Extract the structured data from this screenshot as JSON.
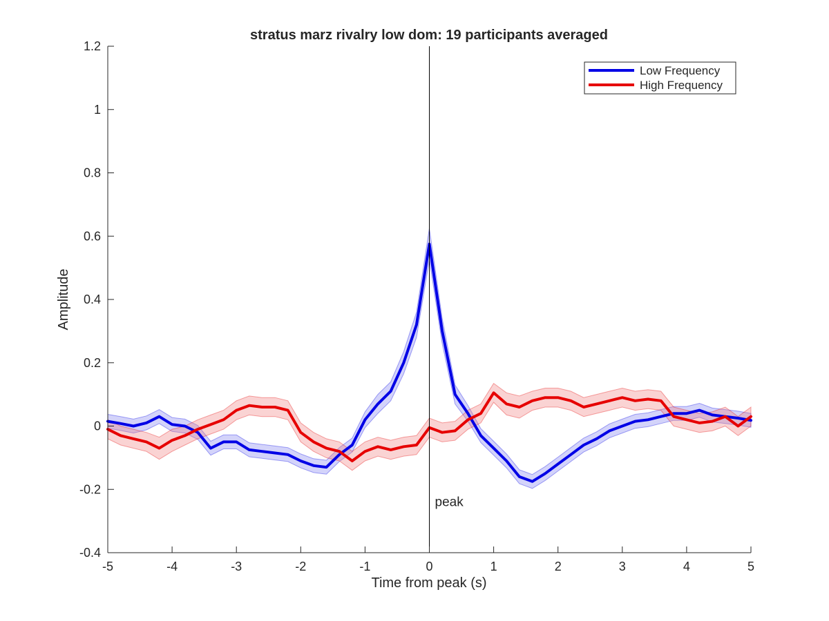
{
  "chart_data": {
    "type": "line",
    "title": "stratus marz rivalry low dom: 19 participants averaged",
    "xlabel": "Time from peak (s)",
    "ylabel": "Amplitude",
    "xlim": [
      -5,
      5
    ],
    "ylim": [
      -0.4,
      1.2
    ],
    "xticks": [
      -5,
      -4,
      -3,
      -2,
      -1,
      0,
      1,
      2,
      3,
      4,
      5
    ],
    "xtick_labels": [
      "-5",
      "-4",
      "-3",
      "-2",
      "-1",
      "0",
      "1",
      "2",
      "3",
      "4",
      "5"
    ],
    "yticks": [
      -0.4,
      -0.2,
      0,
      0.2,
      0.4,
      0.6,
      0.8,
      1,
      1.2
    ],
    "ytick_labels": [
      "-0.4",
      "-0.2",
      "0",
      "0.2",
      "0.4",
      "0.6",
      "0.8",
      "1",
      "1.2"
    ],
    "grid": false,
    "legend_position": "top-right",
    "annotation": {
      "text": "peak",
      "x": 0,
      "y": -0.24
    },
    "vertical_line": {
      "x": 0
    },
    "x": [
      -5.0,
      -4.8,
      -4.6,
      -4.4,
      -4.2,
      -4.0,
      -3.8,
      -3.6,
      -3.4,
      -3.2,
      -3.0,
      -2.8,
      -2.6,
      -2.4,
      -2.2,
      -2.0,
      -1.8,
      -1.6,
      -1.4,
      -1.2,
      -1.0,
      -0.8,
      -0.6,
      -0.4,
      -0.2,
      0.0,
      0.2,
      0.4,
      0.6,
      0.8,
      1.0,
      1.2,
      1.4,
      1.6,
      1.8,
      2.0,
      2.2,
      2.4,
      2.6,
      2.8,
      3.0,
      3.2,
      3.4,
      3.6,
      3.8,
      4.0,
      4.2,
      4.4,
      4.6,
      4.8,
      5.0
    ],
    "series": [
      {
        "name": "Low Frequency",
        "color": "#0000e6",
        "band_color": "#8080f0",
        "values": [
          0.015,
          0.008,
          0.0,
          0.01,
          0.03,
          0.005,
          0.0,
          -0.02,
          -0.07,
          -0.05,
          -0.05,
          -0.075,
          -0.08,
          -0.085,
          -0.09,
          -0.11,
          -0.125,
          -0.13,
          -0.09,
          -0.06,
          0.02,
          0.07,
          0.11,
          0.2,
          0.32,
          0.575,
          0.3,
          0.1,
          0.04,
          -0.03,
          -0.07,
          -0.11,
          -0.16,
          -0.175,
          -0.15,
          -0.12,
          -0.09,
          -0.06,
          -0.04,
          -0.015,
          0.0,
          0.015,
          0.02,
          0.03,
          0.04,
          0.04,
          0.05,
          0.035,
          0.03,
          0.025,
          0.018
        ],
        "error": [
          0.022,
          0.022,
          0.022,
          0.022,
          0.022,
          0.022,
          0.022,
          0.022,
          0.022,
          0.022,
          0.022,
          0.022,
          0.022,
          0.022,
          0.022,
          0.022,
          0.022,
          0.022,
          0.022,
          0.022,
          0.025,
          0.03,
          0.03,
          0.035,
          0.04,
          0.05,
          0.04,
          0.03,
          0.025,
          0.022,
          0.022,
          0.022,
          0.022,
          0.022,
          0.022,
          0.022,
          0.022,
          0.022,
          0.022,
          0.022,
          0.022,
          0.022,
          0.022,
          0.022,
          0.022,
          0.022,
          0.022,
          0.022,
          0.022,
          0.022,
          0.022
        ]
      },
      {
        "name": "High Frequency",
        "color": "#e60000",
        "band_color": "#f08080",
        "values": [
          -0.01,
          -0.03,
          -0.04,
          -0.05,
          -0.07,
          -0.045,
          -0.03,
          -0.01,
          0.005,
          0.02,
          0.05,
          0.065,
          0.06,
          0.06,
          0.05,
          -0.02,
          -0.05,
          -0.07,
          -0.08,
          -0.11,
          -0.08,
          -0.065,
          -0.075,
          -0.065,
          -0.06,
          -0.005,
          -0.02,
          -0.015,
          0.02,
          0.04,
          0.105,
          0.07,
          0.06,
          0.08,
          0.09,
          0.09,
          0.08,
          0.06,
          0.07,
          0.08,
          0.09,
          0.08,
          0.085,
          0.08,
          0.03,
          0.02,
          0.01,
          0.015,
          0.03,
          0.0,
          0.03
        ],
        "error": [
          0.03,
          0.03,
          0.03,
          0.03,
          0.035,
          0.035,
          0.03,
          0.03,
          0.03,
          0.03,
          0.03,
          0.03,
          0.03,
          0.03,
          0.03,
          0.03,
          0.03,
          0.03,
          0.03,
          0.03,
          0.03,
          0.03,
          0.03,
          0.03,
          0.03,
          0.03,
          0.03,
          0.03,
          0.03,
          0.03,
          0.03,
          0.035,
          0.035,
          0.03,
          0.03,
          0.03,
          0.03,
          0.03,
          0.03,
          0.03,
          0.03,
          0.03,
          0.03,
          0.03,
          0.03,
          0.03,
          0.03,
          0.03,
          0.03,
          0.03,
          0.03
        ]
      }
    ]
  }
}
